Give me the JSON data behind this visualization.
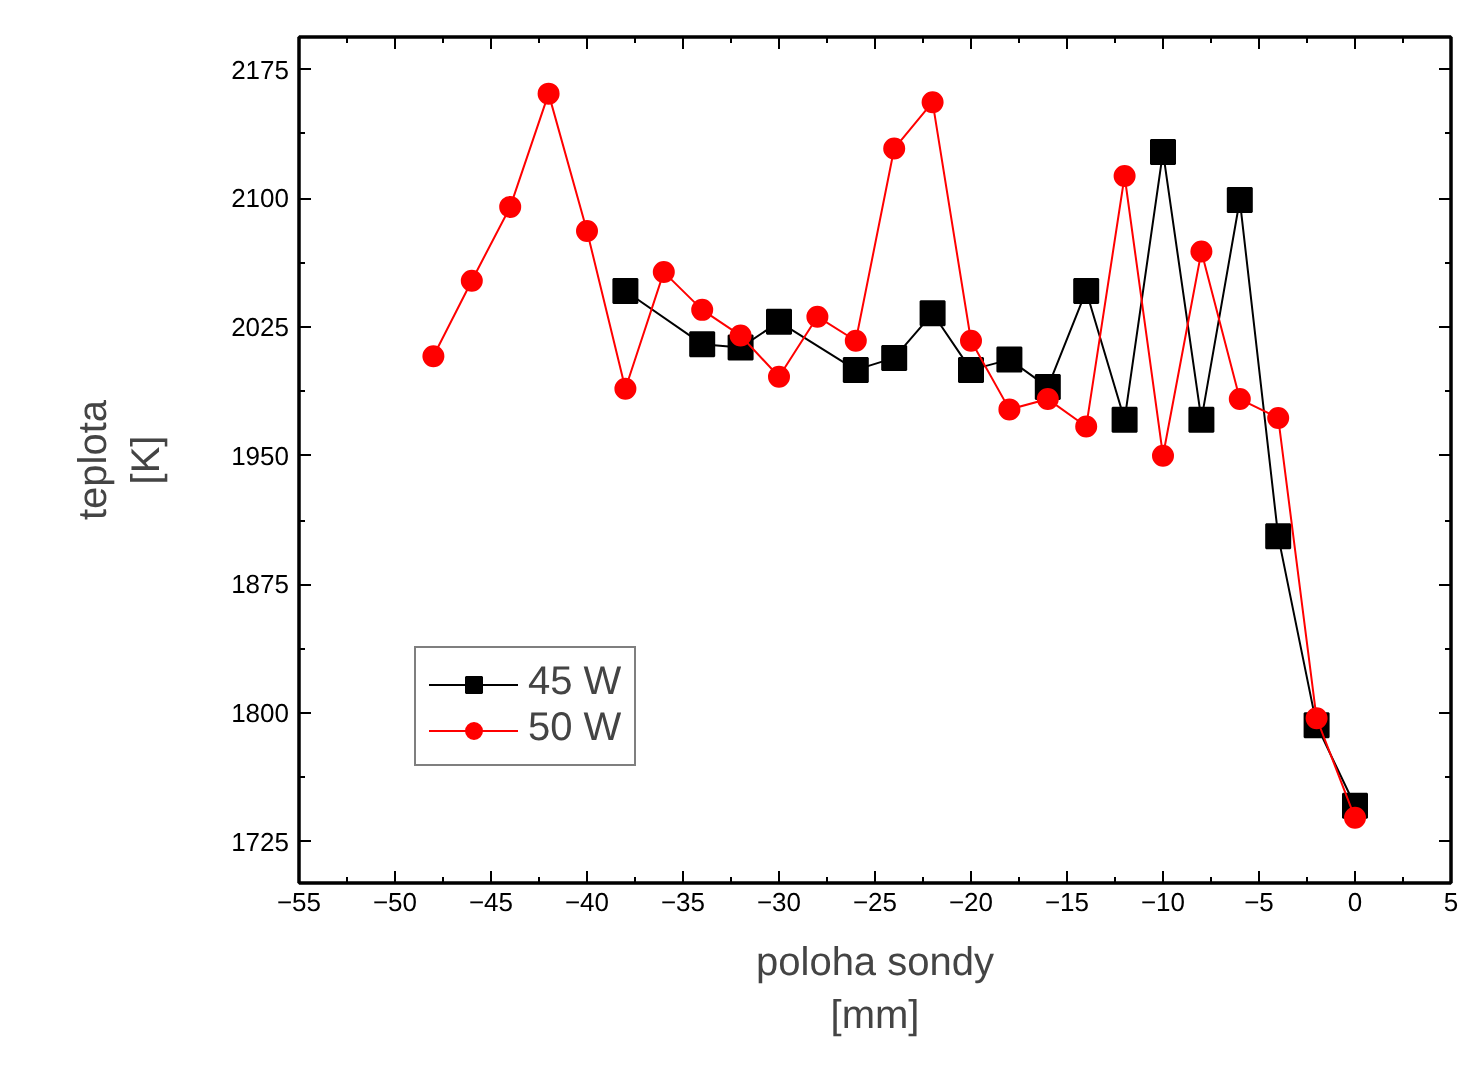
{
  "chart_data": {
    "type": "line",
    "xlabel": "poloha sondy\n[mm]",
    "ylabel": "teplota\n[K]",
    "xlim": [
      -55,
      5
    ],
    "xticks": [
      -55,
      -50,
      -45,
      -40,
      -35,
      -30,
      -25,
      -20,
      -15,
      -10,
      -5,
      0,
      5
    ],
    "ylim": [
      1701,
      2194
    ],
    "yticks": [
      1725,
      1800,
      1875,
      1950,
      2025,
      2100,
      2175
    ],
    "grid": false,
    "legend": "bottom left",
    "line_style": "solid",
    "series": [
      {
        "name": "45 W",
        "color": "#000000",
        "marker": "square",
        "x": [
          -38,
          -34,
          -32,
          -30,
          -26,
          -24,
          -22,
          -20,
          -18,
          -16,
          -14,
          -12,
          -10,
          -8,
          -6,
          -4,
          -2,
          0
        ],
        "values": [
          2046,
          2015,
          2013,
          2028,
          2000,
          2007,
          2033,
          2000,
          2006,
          1990,
          2046,
          1971,
          2127,
          1971,
          2099,
          1903,
          1793,
          1746
        ]
      },
      {
        "name": "50 W",
        "color": "#ff0000",
        "marker": "circle",
        "x": [
          -48,
          -46,
          -44,
          -42,
          -40,
          -38,
          -36,
          -34,
          -32,
          -30,
          -28,
          -26,
          -24,
          -22,
          -20,
          -18,
          -16,
          -14,
          -12,
          -10,
          -8,
          -6,
          -4,
          -2,
          0
        ],
        "values": [
          2008,
          2052,
          2095,
          2161,
          2081,
          1989,
          2057,
          2035,
          2020,
          1996,
          2031,
          2017,
          2129,
          2156,
          2017,
          1977,
          1983,
          1967,
          2113,
          1950,
          2069,
          1983,
          1972,
          1797,
          1739
        ]
      }
    ]
  }
}
